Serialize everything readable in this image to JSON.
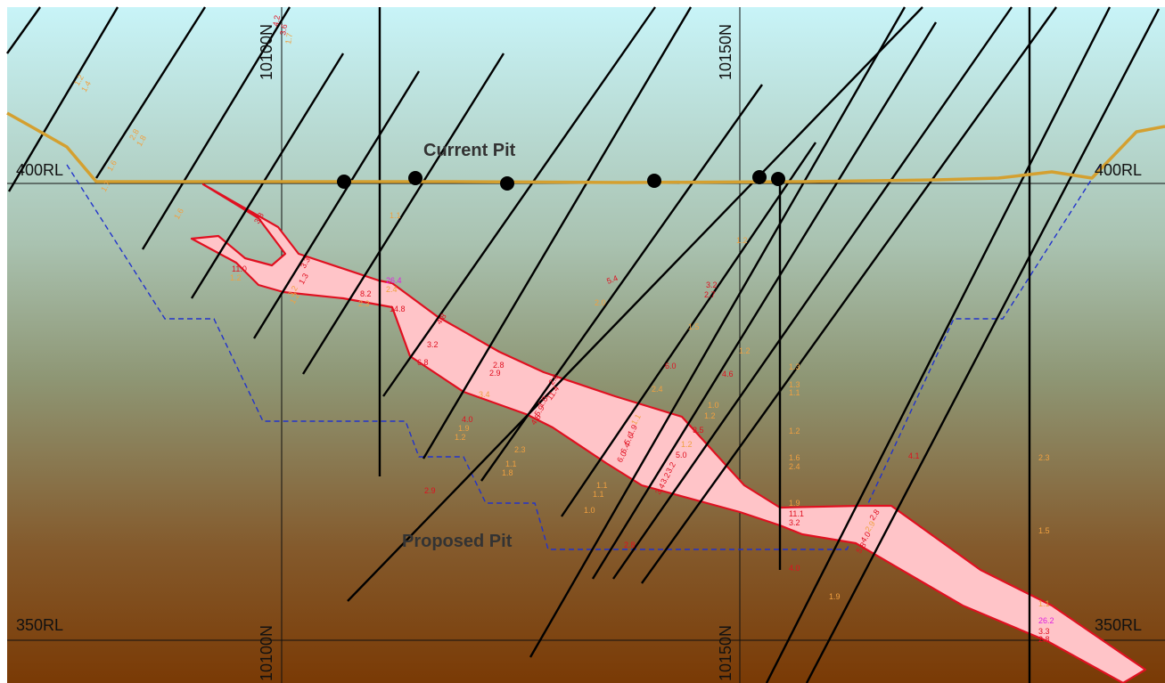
{
  "section": {
    "rl_labels": [
      "400RL",
      "400RL",
      "350RL",
      "350RL"
    ],
    "northing_labels": [
      "10100N",
      "10150N",
      "10100N",
      "10150N"
    ],
    "current_pit_label": "Current Pit",
    "proposed_pit_label": "Proposed Pit"
  },
  "colors": {
    "sky_top": "#c8f4f8",
    "ground_mid": "#9aa98a",
    "ground_bottom": "#7a3a05",
    "current_pit": "#d4a030",
    "proposed_pit": "#2233cc",
    "ore_fill": "#ffc4c8",
    "ore_outline": "#e01020",
    "drill_hole": "#000000",
    "assay_high": "#e01020",
    "assay_low": "#f0a040",
    "assay_peak": "#e020e0"
  },
  "assays": [
    {
      "t": "1.2",
      "c": "low"
    },
    {
      "t": "1.4",
      "c": "low"
    },
    {
      "t": "2.8",
      "c": "low"
    },
    {
      "t": "1.8",
      "c": "low"
    },
    {
      "t": "1.6",
      "c": "low"
    },
    {
      "t": "1.7",
      "c": "low"
    },
    {
      "t": "1.6",
      "c": "low"
    },
    {
      "t": "4.2",
      "c": "high"
    },
    {
      "t": "3.6",
      "c": "high"
    },
    {
      "t": "1.7",
      "c": "low"
    },
    {
      "t": "3.8",
      "c": "high"
    },
    {
      "t": "11.0",
      "c": "high"
    },
    {
      "t": "1.2",
      "c": "low"
    },
    {
      "t": "3.3",
      "c": "high"
    },
    {
      "t": "1.3",
      "c": "high"
    },
    {
      "t": "3.2",
      "c": "low"
    },
    {
      "t": "1.2",
      "c": "low"
    },
    {
      "t": "8.2",
      "c": "high"
    },
    {
      "t": "2.3",
      "c": "low"
    },
    {
      "t": "26.4",
      "c": "peak"
    },
    {
      "t": "2.4",
      "c": "low"
    },
    {
      "t": "14.8",
      "c": "high"
    },
    {
      "t": "1.1",
      "c": "low"
    },
    {
      "t": "4.8",
      "c": "high"
    },
    {
      "t": "3.2",
      "c": "high"
    },
    {
      "t": "6.8",
      "c": "high"
    },
    {
      "t": "5.4",
      "c": "high"
    },
    {
      "t": "2.0",
      "c": "low"
    },
    {
      "t": "2.8",
      "c": "high"
    },
    {
      "t": "2.9",
      "c": "high"
    },
    {
      "t": "3.4",
      "c": "low"
    },
    {
      "t": "2.6",
      "c": "high"
    },
    {
      "t": "11.4",
      "c": "high"
    },
    {
      "t": "1.0",
      "c": "high"
    },
    {
      "t": "5.9",
      "c": "high"
    },
    {
      "t": "4.8",
      "c": "high"
    },
    {
      "t": "4.0",
      "c": "high"
    },
    {
      "t": "1.9",
      "c": "low"
    },
    {
      "t": "1.2",
      "c": "low"
    },
    {
      "t": "2.3",
      "c": "low"
    },
    {
      "t": "1.1",
      "c": "low"
    },
    {
      "t": "1.8",
      "c": "low"
    },
    {
      "t": "2.9",
      "c": "high"
    },
    {
      "t": "1.1",
      "c": "low"
    },
    {
      "t": "1.1",
      "c": "low"
    },
    {
      "t": "1.0",
      "c": "low"
    },
    {
      "t": "3.2",
      "c": "high"
    },
    {
      "t": "2.7",
      "c": "high"
    },
    {
      "t": "1.5",
      "c": "low"
    },
    {
      "t": "6.0",
      "c": "high"
    },
    {
      "t": "2.4",
      "c": "low"
    },
    {
      "t": "1.1",
      "c": "low"
    },
    {
      "t": "1.9",
      "c": "high"
    },
    {
      "t": "5.6",
      "c": "high"
    },
    {
      "t": "6.4",
      "c": "high"
    },
    {
      "t": "6.0",
      "c": "high"
    },
    {
      "t": "1.2",
      "c": "low"
    },
    {
      "t": "5.0",
      "c": "high"
    },
    {
      "t": "3.2",
      "c": "high"
    },
    {
      "t": "3.2",
      "c": "high"
    },
    {
      "t": "3.4",
      "c": "high"
    },
    {
      "t": "1.0",
      "c": "low"
    },
    {
      "t": "1.2",
      "c": "low"
    },
    {
      "t": "3.5",
      "c": "high"
    },
    {
      "t": "1.2",
      "c": "low"
    },
    {
      "t": "1.2",
      "c": "low"
    },
    {
      "t": "4.6",
      "c": "high"
    },
    {
      "t": "1.3",
      "c": "low"
    },
    {
      "t": "1.3",
      "c": "low"
    },
    {
      "t": "1.1",
      "c": "low"
    },
    {
      "t": "1.2",
      "c": "low"
    },
    {
      "t": "1.6",
      "c": "low"
    },
    {
      "t": "2.4",
      "c": "low"
    },
    {
      "t": "1.9",
      "c": "low"
    },
    {
      "t": "11.1",
      "c": "high"
    },
    {
      "t": "3.2",
      "c": "high"
    },
    {
      "t": "4.0",
      "c": "high"
    },
    {
      "t": "4.1",
      "c": "high"
    },
    {
      "t": "2.8",
      "c": "high"
    },
    {
      "t": "2.9",
      "c": "low"
    },
    {
      "t": "4.0",
      "c": "high"
    },
    {
      "t": "5.8",
      "c": "high"
    },
    {
      "t": "2.8",
      "c": "high"
    },
    {
      "t": "1.9",
      "c": "low"
    },
    {
      "t": "2.3",
      "c": "low"
    },
    {
      "t": "1.5",
      "c": "low"
    },
    {
      "t": "1.1",
      "c": "low"
    },
    {
      "t": "26.2",
      "c": "peak"
    },
    {
      "t": "3.3",
      "c": "high"
    },
    {
      "t": "2.8",
      "c": "high"
    }
  ]
}
